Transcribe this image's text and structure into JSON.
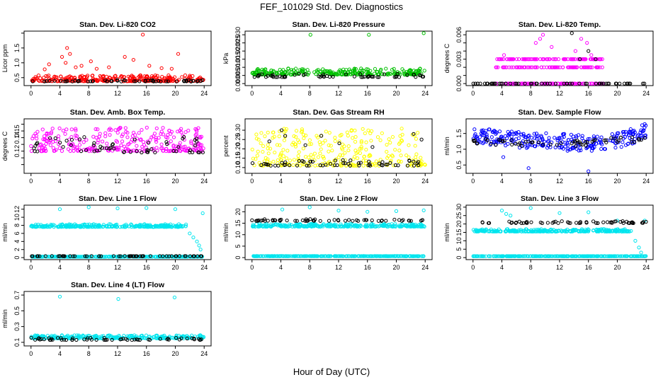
{
  "page": {
    "title": "FEF_101029  Std. Dev. Diagnostics",
    "xlabel": "Hour of Day (UTC)"
  },
  "chart_data": [
    {
      "type": "scatter",
      "title": "Stan. Dev. Li-820 CO2",
      "ylabel": "Licor ppm",
      "xlim": [
        0,
        24
      ],
      "ylim": [
        0.3,
        2.0
      ],
      "xticks": [
        0,
        4,
        8,
        12,
        16,
        20,
        24
      ],
      "yticks": [
        0.5,
        1.0,
        1.5,
        2.0
      ],
      "ytick_labels": [
        "0.5",
        "1.0",
        "1.5",
        ""
      ],
      "series": [
        {
          "color": "#ff0000",
          "base": 0.38,
          "spread": 0.2,
          "outliers": [
            [
              1.9,
              0.78
            ],
            [
              2.5,
              0.95
            ],
            [
              4.3,
              1.2
            ],
            [
              4.8,
              1.0
            ],
            [
              5.0,
              1.5
            ],
            [
              5.4,
              1.3
            ],
            [
              6.2,
              0.85
            ],
            [
              7.0,
              0.9
            ],
            [
              8.3,
              1.05
            ],
            [
              9.1,
              0.8
            ],
            [
              10.8,
              0.85
            ],
            [
              13.0,
              1.2
            ],
            [
              14.2,
              1.1
            ],
            [
              15.5,
              1.95
            ],
            [
              16.4,
              0.9
            ],
            [
              18.1,
              0.82
            ],
            [
              19.5,
              0.8
            ],
            [
              20.4,
              1.3
            ]
          ]
        },
        {
          "color": "#000000",
          "base": 0.37,
          "spread": 0.05,
          "outliers": []
        }
      ]
    },
    {
      "type": "scatter",
      "title": "Stan. Dev. Li-820 Pressure",
      "ylabel": "kPa",
      "xlim": [
        0,
        24
      ],
      "ylim": [
        0,
        0.031
      ],
      "xticks": [
        0,
        4,
        8,
        12,
        16,
        20,
        24
      ],
      "yticks": [
        0.0,
        0.005,
        0.01,
        0.015,
        0.02,
        0.025,
        0.03
      ],
      "ytick_labels": [
        "0.000",
        "0.005",
        "0.010",
        "0.015",
        "0.020",
        "0.025",
        "0.030"
      ],
      "series": [
        {
          "color": "#00c000",
          "base": 0.0055,
          "spread": 0.004,
          "outliers": [
            [
              8.1,
              0.03
            ],
            [
              16.2,
              0.03
            ],
            [
              23.8,
              0.031
            ]
          ]
        },
        {
          "color": "#000000",
          "base": 0.004,
          "spread": 0.002,
          "outliers": []
        }
      ]
    },
    {
      "type": "scatter",
      "title": "Stan. Dev. Li-820 Temp.",
      "ylabel": "degrees C",
      "xlim": [
        0,
        24
      ],
      "ylim": [
        0,
        0.0062
      ],
      "xticks": [
        0,
        4,
        8,
        12,
        16,
        20,
        24
      ],
      "yticks": [
        0.0,
        0.001,
        0.002,
        0.003,
        0.004,
        0.005,
        0.006
      ],
      "ytick_labels": [
        "0.000",
        "",
        "",
        "0.003",
        "",
        "",
        "0.006"
      ],
      "series": [
        {
          "color": "#ff00ff",
          "levels": [
            0,
            0.002,
            0.003
          ],
          "range": [
            3,
            18
          ],
          "outliers": [
            [
              4.3,
              0.0035
            ],
            [
              8.7,
              0.005
            ],
            [
              9.3,
              0.0055
            ],
            [
              9.7,
              0.006
            ],
            [
              10.9,
              0.0045
            ],
            [
              14.2,
              0.004
            ],
            [
              15.0,
              0.0055
            ],
            [
              15.8,
              0.005
            ],
            [
              16.4,
              0.0035
            ]
          ]
        },
        {
          "color": "#000000",
          "levels": [
            0
          ],
          "range": [
            0,
            24
          ],
          "outliers": [
            [
              13.7,
              0.0062
            ],
            [
              14.8,
              0.003
            ],
            [
              16.0,
              0.004
            ],
            [
              17.0,
              0.003
            ]
          ]
        }
      ]
    },
    {
      "type": "scatter",
      "title": "Stan. Dev. Amb. Box Temp.",
      "ylabel": "degrees C",
      "xlim": [
        0,
        24
      ],
      "ylim": [
        0.09,
        0.165
      ],
      "xticks": [
        0,
        4,
        8,
        12,
        16,
        20,
        24
      ],
      "yticks": [
        0.1,
        0.11,
        0.12,
        0.13,
        0.14,
        0.15,
        0.16
      ],
      "ytick_labels": [
        "",
        "",
        "0.12",
        "",
        "0.14",
        "0.15",
        ""
      ],
      "series": [
        {
          "color": "#ff00ff",
          "base": 0.12,
          "spread": 0.035,
          "outliers": []
        },
        {
          "color": "#000000",
          "base": 0.118,
          "spread": 0.025,
          "outliers": []
        }
      ]
    },
    {
      "type": "scatter",
      "title": "Stan. Dev. Gas Stream RH",
      "ylabel": "percent",
      "xlim": [
        0,
        24
      ],
      "ylim": [
        0.08,
        0.35
      ],
      "xticks": [
        0,
        4,
        8,
        12,
        16,
        20,
        24
      ],
      "yticks": [
        0.1,
        0.15,
        0.2,
        0.25,
        0.3
      ],
      "ytick_labels": [
        "0.10",
        "0.15",
        "0.20",
        "0.25",
        "0.30"
      ],
      "series": [
        {
          "color": "#ffff00",
          "base": 0.11,
          "spread": 0.2,
          "outliers": []
        },
        {
          "color": "#000000",
          "base": 0.11,
          "spread": 0.03,
          "outliers": [
            [
              2.4,
              0.24
            ],
            [
              4.1,
              0.3
            ],
            [
              4.6,
              0.27
            ],
            [
              7.4,
              0.22
            ],
            [
              9.6,
              0.27
            ],
            [
              12.1,
              0.23
            ],
            [
              16.7,
              0.21
            ],
            [
              22.4,
              0.28
            ],
            [
              23.5,
              0.25
            ]
          ]
        }
      ]
    },
    {
      "type": "scatter",
      "title": "Stan. Dev. Sample Flow",
      "ylabel": "ml/min",
      "xlim": [
        0,
        24
      ],
      "ylim": [
        0.3,
        1.9
      ],
      "xticks": [
        0,
        4,
        8,
        12,
        16,
        20,
        24
      ],
      "yticks": [
        0.5,
        1.0,
        1.5
      ],
      "ytick_labels": [
        "0.5",
        "1.0",
        "1.5"
      ],
      "series": [
        {
          "color": "#0000ff",
          "trend": [
            [
              0,
              1.45
            ],
            [
              6,
              1.3
            ],
            [
              12,
              1.25
            ],
            [
              18,
              1.15
            ],
            [
              22,
              1.4
            ],
            [
              24,
              1.6
            ]
          ],
          "spread": 0.25,
          "outliers": [
            [
              7.7,
              0.4
            ],
            [
              16.0,
              0.3
            ],
            [
              4.2,
              0.75
            ],
            [
              13.1,
              0.95
            ],
            [
              23.8,
              1.8
            ]
          ]
        },
        {
          "color": "#000000",
          "trend": [
            [
              0,
              1.25
            ],
            [
              12,
              1.15
            ],
            [
              24,
              1.35
            ]
          ],
          "spread": 0.1,
          "outliers": []
        }
      ]
    },
    {
      "type": "scatter",
      "title": "Stan. Dev. Line 1 Flow",
      "ylabel": "ml/min",
      "xlim": [
        0,
        24
      ],
      "ylim": [
        0,
        12.5
      ],
      "xticks": [
        0,
        4,
        8,
        12,
        16,
        20,
        24
      ],
      "yticks": [
        0,
        2,
        4,
        6,
        8,
        10,
        12
      ],
      "ytick_labels": [
        "0",
        "2",
        "4",
        "6",
        "8",
        "10",
        "12"
      ],
      "series": [
        {
          "color": "#00e5ee",
          "base": 7.6,
          "spread": 0.7,
          "range": [
            0,
            21.5
          ],
          "outliers": [
            [
              4.0,
              12.0
            ],
            [
              8.0,
              12.5
            ],
            [
              12.0,
              12.2
            ],
            [
              16.0,
              12.3
            ],
            [
              20.0,
              12.0
            ],
            [
              23.8,
              11.0
            ],
            [
              22.0,
              6.0
            ],
            [
              22.5,
              5.0
            ],
            [
              23.0,
              4.0
            ],
            [
              23.3,
              3.0
            ],
            [
              23.5,
              2.0
            ]
          ]
        },
        {
          "color": "#00e5ee",
          "base": 0.2,
          "spread": 0.05,
          "outliers": []
        },
        {
          "color": "#000000",
          "base": 0.35,
          "spread": 0.05,
          "outliers": []
        }
      ]
    },
    {
      "type": "scatter",
      "title": "Stan. Dev. Line 2 Flow",
      "ylabel": "ml/min",
      "xlim": [
        0,
        24
      ],
      "ylim": [
        0,
        22
      ],
      "xticks": [
        0,
        4,
        8,
        12,
        16,
        20,
        24
      ],
      "yticks": [
        0,
        5,
        10,
        15,
        20
      ],
      "ytick_labels": [
        "0",
        "5",
        "10",
        "15",
        "20"
      ],
      "series": [
        {
          "color": "#00e5ee",
          "base": 13.5,
          "spread": 1.2,
          "outliers": [
            [
              4.2,
              21.0
            ],
            [
              8.0,
              22.0
            ],
            [
              12.0,
              20.5
            ],
            [
              16.0,
              20.0
            ],
            [
              20.0,
              20.3
            ],
            [
              23.8,
              20.6
            ]
          ]
        },
        {
          "color": "#00e5ee",
          "base": 0.6,
          "spread": 0.1,
          "outliers": []
        },
        {
          "color": "#000000",
          "base": 16.0,
          "spread": 0.8,
          "outliers": []
        }
      ]
    },
    {
      "type": "scatter",
      "title": "Stan. Dev. Line 3 Flow",
      "ylabel": "ml/min",
      "xlim": [
        0,
        24
      ],
      "ylim": [
        0,
        30
      ],
      "xticks": [
        0,
        4,
        8,
        12,
        16,
        20,
        24
      ],
      "yticks": [
        0,
        5,
        10,
        15,
        20,
        25,
        30
      ],
      "ytick_labels": [
        "0",
        "5",
        "10",
        "15",
        "20",
        "25",
        "30"
      ],
      "series": [
        {
          "color": "#00e5ee",
          "base": 15.5,
          "spread": 1.5,
          "range": [
            0,
            22
          ],
          "outliers": [
            [
              4.0,
              28.0
            ],
            [
              4.6,
              26.0
            ],
            [
              5.2,
              25.0
            ],
            [
              8.0,
              29.5
            ],
            [
              16.0,
              27.0
            ],
            [
              12.0,
              26.5
            ],
            [
              20.0,
              22.0
            ],
            [
              23.8,
              22.0
            ],
            [
              22.5,
              10.0
            ],
            [
              23.0,
              6.0
            ],
            [
              23.3,
              3.0
            ]
          ]
        },
        {
          "color": "#00e5ee",
          "base": 0.8,
          "spread": 0.1,
          "outliers": []
        },
        {
          "color": "#000000",
          "base": 20.5,
          "spread": 1.2,
          "outliers": []
        }
      ]
    },
    {
      "type": "scatter",
      "title": "Stan. Dev. Line 4 (LT) Flow",
      "ylabel": "ml/min",
      "xlim": [
        0,
        24
      ],
      "ylim": [
        0.08,
        0.72
      ],
      "xticks": [
        0,
        4,
        8,
        12,
        16,
        20,
        24
      ],
      "yticks": [
        0.1,
        0.3,
        0.5,
        0.7
      ],
      "ytick_labels": [
        "0.1",
        "0.3",
        "0.5",
        "0.7"
      ],
      "series": [
        {
          "color": "#00e5ee",
          "base": 0.15,
          "spread": 0.04,
          "outliers": [
            [
              4.0,
              0.68
            ],
            [
              12.1,
              0.65
            ],
            [
              19.9,
              0.67
            ]
          ]
        },
        {
          "color": "#000000",
          "base": 0.13,
          "spread": 0.03,
          "outliers": []
        }
      ]
    }
  ]
}
